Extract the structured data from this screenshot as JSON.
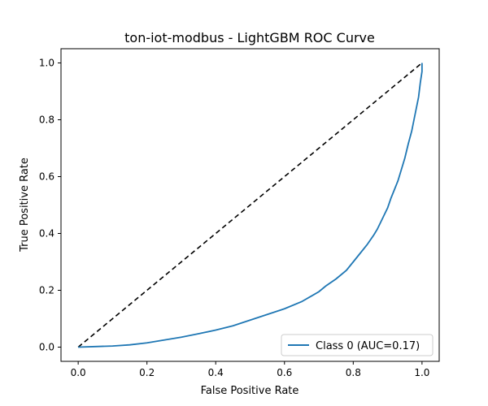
{
  "chart_data": {
    "type": "line",
    "title": "ton-iot-modbus - LightGBM ROC Curve",
    "xlabel": "False Positive Rate",
    "ylabel": "True Positive Rate",
    "xlim": [
      -0.05,
      1.05
    ],
    "ylim": [
      -0.05,
      1.05
    ],
    "xticks": [
      0.0,
      0.2,
      0.4,
      0.6,
      0.8,
      1.0
    ],
    "yticks": [
      0.0,
      0.2,
      0.4,
      0.6,
      0.8,
      1.0
    ],
    "xtick_labels": [
      "0.0",
      "0.2",
      "0.4",
      "0.6",
      "0.8",
      "1.0"
    ],
    "ytick_labels": [
      "0.0",
      "0.2",
      "0.4",
      "0.6",
      "0.8",
      "1.0"
    ],
    "grid": false,
    "legend_position": "lower-right",
    "series": [
      {
        "name": "Class 0 (AUC=0.17)",
        "color": "#1f77b4",
        "style": "solid",
        "x": [
          0.0,
          0.05,
          0.1,
          0.15,
          0.2,
          0.25,
          0.3,
          0.35,
          0.4,
          0.45,
          0.5,
          0.55,
          0.6,
          0.65,
          0.7,
          0.72,
          0.75,
          0.78,
          0.8,
          0.82,
          0.84,
          0.86,
          0.87,
          0.88,
          0.89,
          0.9,
          0.91,
          0.92,
          0.93,
          0.94,
          0.95,
          0.96,
          0.97,
          0.98,
          0.99,
          0.995,
          1.0,
          1.0
        ],
        "y": [
          0.0,
          0.002,
          0.004,
          0.008,
          0.015,
          0.025,
          0.035,
          0.047,
          0.06,
          0.075,
          0.095,
          0.115,
          0.135,
          0.16,
          0.195,
          0.215,
          0.24,
          0.27,
          0.3,
          0.33,
          0.36,
          0.395,
          0.415,
          0.44,
          0.465,
          0.49,
          0.525,
          0.555,
          0.585,
          0.625,
          0.665,
          0.715,
          0.76,
          0.82,
          0.88,
          0.93,
          0.97,
          1.0
        ]
      },
      {
        "name": "",
        "color": "#000000",
        "style": "dashed",
        "x": [
          0.0,
          1.0
        ],
        "y": [
          0.0,
          1.0
        ]
      }
    ]
  }
}
